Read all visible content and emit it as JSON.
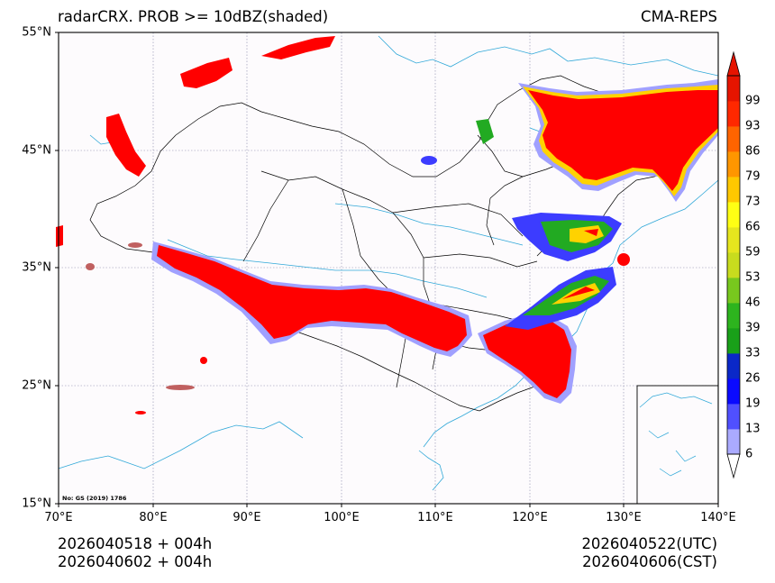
{
  "header": {
    "title_left": "radarCRX. PROB >= 10dBZ(shaded)",
    "title_right": "CMA-REPS"
  },
  "axes": {
    "lat_labels": [
      "55°N",
      "45°N",
      "35°N",
      "25°N",
      "15°N"
    ],
    "lon_labels": [
      "70°E",
      "80°E",
      "90°E",
      "100°E",
      "110°E",
      "120°E",
      "130°E",
      "140°E"
    ]
  },
  "map_note": "No: GS (2019) 1786",
  "footer": {
    "init_utc": "2026040518  +  004h",
    "init_cst": "2026040602  +  004h",
    "valid_utc": "2026040522(UTC)",
    "valid_cst": "2026040606(CST)"
  },
  "colorbar": {
    "levels": [
      "6",
      "13",
      "19",
      "26",
      "33",
      "39",
      "46",
      "53",
      "59",
      "66",
      "73",
      "79",
      "86",
      "93",
      "99"
    ],
    "colors": [
      "#aaaaff",
      "#5050ff",
      "#0a0aff",
      "#0a28c8",
      "#19a019",
      "#2db41e",
      "#78c81e",
      "#c8dc1e",
      "#e6e61e",
      "#ffff14",
      "#ffc800",
      "#ff9600",
      "#ff6400",
      "#ff2800",
      "#e61400"
    ]
  },
  "palette": {
    "coast": "#30a8d8",
    "border": "#000000",
    "precip_high": "#ff0000",
    "precip_mid": "#ffd200",
    "precip_low": "#3c3cff",
    "precip_edge": "#a0a0ff"
  }
}
